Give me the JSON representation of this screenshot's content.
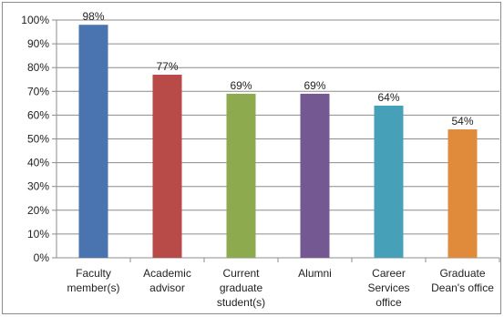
{
  "chart_data": {
    "type": "bar",
    "title": "",
    "xlabel": "",
    "ylabel": "",
    "ylim": [
      0,
      100
    ],
    "y_tick_step": 10,
    "y_tick_format": "percent",
    "grid": true,
    "legend": "none",
    "categories": [
      [
        "Faculty",
        "member(s)"
      ],
      [
        "Academic",
        "advisor"
      ],
      [
        "Current",
        "graduate",
        "student(s)"
      ],
      [
        "Alumni"
      ],
      [
        "Career",
        "Services",
        "office"
      ],
      [
        "Graduate",
        "Dean's office"
      ]
    ],
    "values": [
      98,
      77,
      69,
      69,
      64,
      54
    ],
    "data_labels": [
      "98%",
      "77%",
      "69%",
      "69%",
      "64%",
      "54%"
    ],
    "colors": [
      "#4a74b0",
      "#b84a47",
      "#8daa4f",
      "#735891",
      "#45a0b8",
      "#e08a3c"
    ]
  }
}
